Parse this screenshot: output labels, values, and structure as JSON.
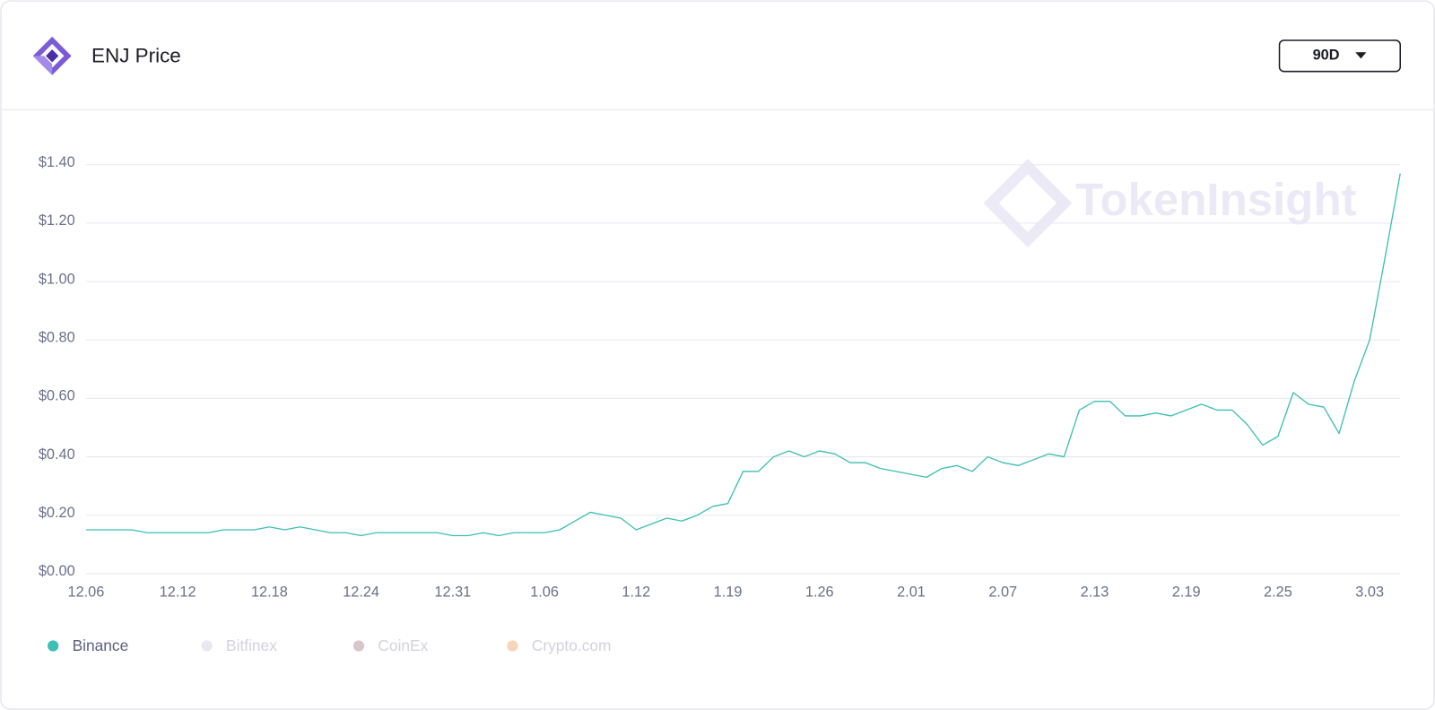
{
  "chart_data": {
    "type": "line",
    "title": "ENJ Price",
    "range_selector": "90D",
    "watermark": "TokenInsight",
    "categories": [
      "12.06",
      null,
      null,
      null,
      null,
      null,
      "12.12",
      null,
      null,
      null,
      null,
      null,
      "12.18",
      null,
      null,
      null,
      null,
      null,
      "12.24",
      null,
      null,
      null,
      null,
      null,
      "12.31",
      null,
      null,
      null,
      null,
      null,
      "1.06",
      null,
      null,
      null,
      null,
      null,
      "1.12",
      null,
      null,
      null,
      null,
      null,
      "1.19",
      null,
      null,
      null,
      null,
      null,
      "1.26",
      null,
      null,
      null,
      null,
      null,
      "2.01",
      null,
      null,
      null,
      null,
      null,
      "2.07",
      null,
      null,
      null,
      null,
      null,
      "2.13",
      null,
      null,
      null,
      null,
      null,
      "2.19",
      null,
      null,
      null,
      null,
      null,
      "2.25",
      null,
      null,
      null,
      null,
      null,
      "3.03",
      null,
      null
    ],
    "series": [
      {
        "name": "Binance",
        "color": "#3cbfb5",
        "visible": true,
        "values": [
          0.15,
          0.15,
          0.15,
          0.15,
          0.14,
          0.14,
          0.14,
          0.14,
          0.14,
          0.15,
          0.15,
          0.15,
          0.16,
          0.15,
          0.16,
          0.15,
          0.14,
          0.14,
          0.13,
          0.14,
          0.14,
          0.14,
          0.14,
          0.14,
          0.13,
          0.13,
          0.14,
          0.13,
          0.14,
          0.14,
          0.14,
          0.15,
          0.18,
          0.21,
          0.2,
          0.19,
          0.15,
          0.17,
          0.19,
          0.18,
          0.2,
          0.23,
          0.24,
          0.35,
          0.35,
          0.4,
          0.42,
          0.4,
          0.42,
          0.41,
          0.38,
          0.38,
          0.36,
          0.35,
          0.34,
          0.33,
          0.36,
          0.37,
          0.35,
          0.4,
          0.38,
          0.37,
          0.39,
          0.41,
          0.4,
          0.56,
          0.59,
          0.59,
          0.54,
          0.54,
          0.55,
          0.54,
          0.56,
          0.58,
          0.56,
          0.56,
          0.51,
          0.44,
          0.47,
          0.62,
          0.58,
          0.57,
          0.48,
          0.66,
          0.8,
          1.08,
          1.37
        ]
      },
      {
        "name": "Bitfinex",
        "color": "#e9e7ef",
        "visible": false
      },
      {
        "name": "CoinEx",
        "color": "#d9c6c9",
        "visible": false
      },
      {
        "name": "Crypto.com",
        "color": "#f7d4ba",
        "visible": false
      }
    ],
    "ylim": [
      0,
      1.4
    ],
    "yticks": [
      {
        "value": 0,
        "label": "$0.00"
      },
      {
        "value": 0.2,
        "label": "$0.20"
      },
      {
        "value": 0.4,
        "label": "$0.40"
      },
      {
        "value": 0.6,
        "label": "$0.60"
      },
      {
        "value": 0.8,
        "label": "$0.80"
      },
      {
        "value": 1.0,
        "label": "$1.00"
      },
      {
        "value": 1.2,
        "label": "$1.20"
      },
      {
        "value": 1.4,
        "label": "$1.40"
      }
    ],
    "grid": true
  }
}
